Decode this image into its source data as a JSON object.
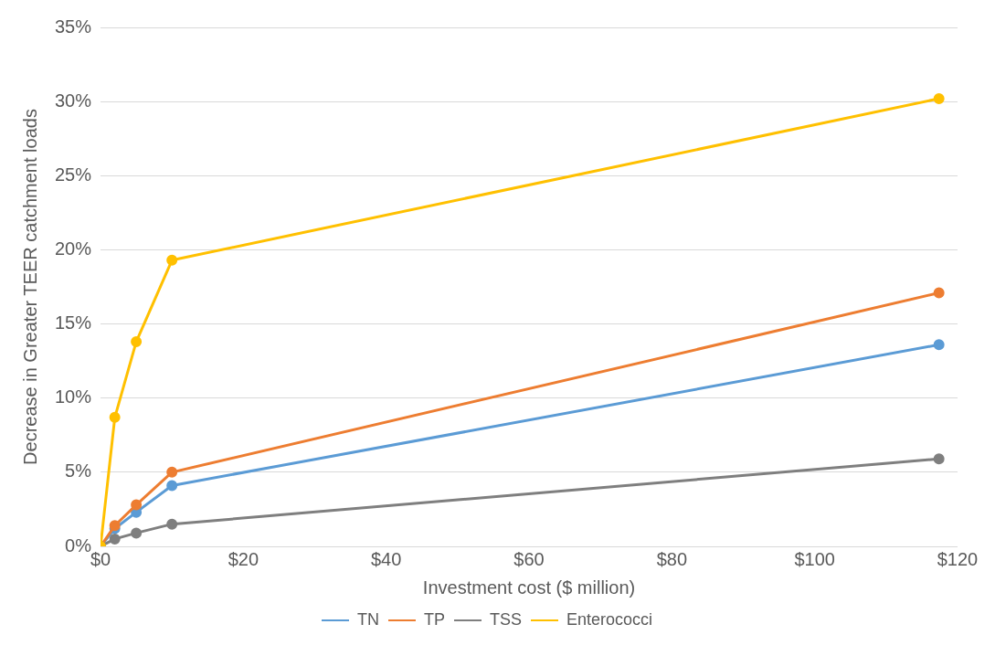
{
  "chart_data": {
    "type": "line",
    "xlabel": "Investment cost ($ million)",
    "ylabel": "Decrease in Greater TEER catchment loads",
    "x": [
      0,
      2,
      5,
      10,
      117.4
    ],
    "series": [
      {
        "name": "TN",
        "color": "#5b9bd5",
        "values": [
          0,
          1.2,
          2.3,
          4.1,
          13.6
        ]
      },
      {
        "name": "TP",
        "color": "#ed7d31",
        "values": [
          0,
          1.4,
          2.8,
          5.0,
          17.1
        ]
      },
      {
        "name": "TSS",
        "color": "#7f7f7f",
        "values": [
          0,
          0.5,
          0.9,
          1.5,
          5.9
        ]
      },
      {
        "name": "Enterococci",
        "color": "#ffc000",
        "values": [
          0,
          8.7,
          13.8,
          19.3,
          30.2
        ]
      }
    ],
    "xlim": [
      0,
      120
    ],
    "xticks": [
      {
        "value": 0,
        "label": "$0"
      },
      {
        "value": 20,
        "label": "$20"
      },
      {
        "value": 40,
        "label": "$40"
      },
      {
        "value": 60,
        "label": "$60"
      },
      {
        "value": 80,
        "label": "$80"
      },
      {
        "value": 100,
        "label": "$100"
      },
      {
        "value": 120,
        "label": "$120"
      }
    ],
    "ylim": [
      0,
      35
    ],
    "yticks": [
      {
        "value": 0,
        "label": "0%"
      },
      {
        "value": 5,
        "label": "5%"
      },
      {
        "value": 10,
        "label": "10%"
      },
      {
        "value": 15,
        "label": "15%"
      },
      {
        "value": 20,
        "label": "20%"
      },
      {
        "value": 25,
        "label": "25%"
      },
      {
        "value": 30,
        "label": "30%"
      },
      {
        "value": 35,
        "label": "35%"
      }
    ],
    "grid": "y",
    "legend": "bottom",
    "marker": "circle",
    "line_style": "solid"
  }
}
